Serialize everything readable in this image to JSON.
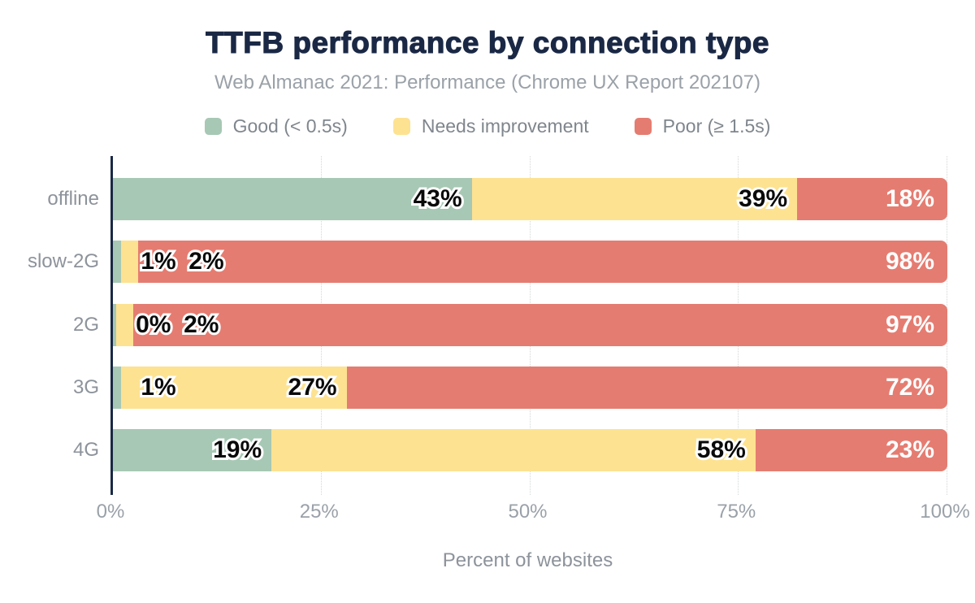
{
  "title": "TTFB performance by connection type",
  "subtitle": "Web Almanac 2021: Performance (Chrome UX Report 202107)",
  "legend": [
    {
      "label": "Good (< 0.5s)",
      "color": "#a7c8b4"
    },
    {
      "label": "Needs improvement",
      "color": "#fde291"
    },
    {
      "label": "Poor (≥ 1.5s)",
      "color": "#e57c71"
    }
  ],
  "chart_data": {
    "type": "bar",
    "orientation": "horizontal",
    "stacked": true,
    "title": "TTFB performance by connection type",
    "subtitle": "Web Almanac 2021: Performance (Chrome UX Report 202107)",
    "categories": [
      "offline",
      "slow-2G",
      "2G",
      "3G",
      "4G"
    ],
    "series": [
      {
        "name": "Good (< 0.5s)",
        "color": "#a7c8b4",
        "values": [
          43,
          1,
          0,
          1,
          19
        ]
      },
      {
        "name": "Needs improvement",
        "color": "#fde291",
        "values": [
          39,
          2,
          2,
          27,
          58
        ]
      },
      {
        "name": "Poor (≥ 1.5s)",
        "color": "#e57c71",
        "values": [
          18,
          98,
          97,
          72,
          23
        ]
      }
    ],
    "value_suffix": "%",
    "xlabel": "Percent of websites",
    "ylabel": "",
    "x_ticks": [
      "0%",
      "25%",
      "50%",
      "75%",
      "100%"
    ],
    "xlim": [
      0,
      100
    ],
    "grid": "vertical-dotted",
    "legend_position": "top"
  },
  "colors": {
    "title": "#1a2845",
    "axis_line": "#1a2845",
    "subtitle_text": "#9aa1a8",
    "tick_text": "#9aa1a8",
    "category_text": "#8d939b",
    "legend_text": "#7f868d",
    "label_dark": "#0a0a0a",
    "label_light": "#ffffff",
    "gridline": "#d4d6d8"
  }
}
